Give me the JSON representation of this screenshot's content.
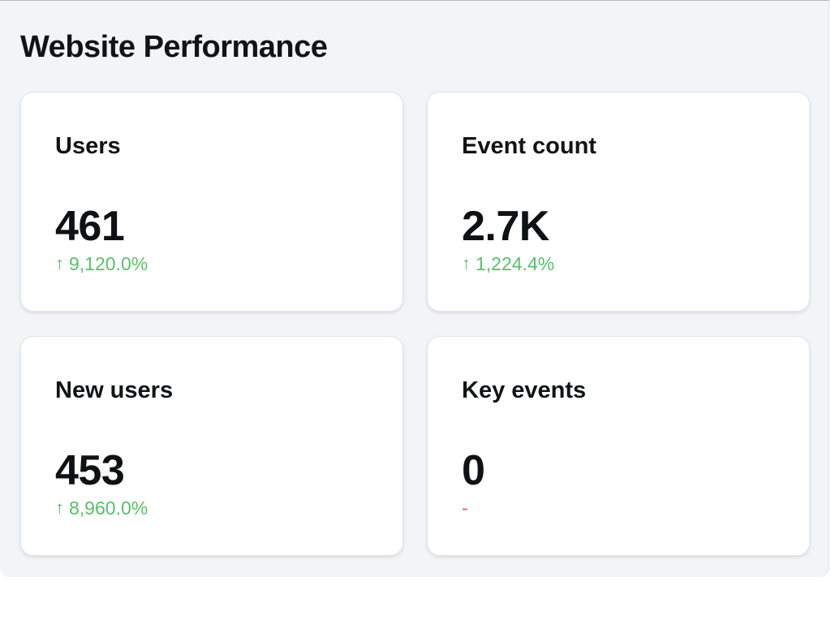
{
  "header": {
    "title": "Website Performance"
  },
  "metrics": [
    {
      "label": "Users",
      "value": "461",
      "change": "9,120.0%",
      "trend": "up",
      "trend_symbol": "↑"
    },
    {
      "label": "Event count",
      "value": "2.7K",
      "change": "1,224.4%",
      "trend": "up",
      "trend_symbol": "↑"
    },
    {
      "label": "New users",
      "value": "453",
      "change": "8,960.0%",
      "trend": "up",
      "trend_symbol": "↑"
    },
    {
      "label": "Key events",
      "value": "0",
      "change": "-",
      "trend": "none",
      "trend_symbol": ""
    }
  ],
  "colors": {
    "positive": "#58c06a",
    "neutral": "#e05a5a",
    "text": "#111317",
    "panel_bg": "#f3f4f6",
    "card_bg": "#ffffff"
  }
}
